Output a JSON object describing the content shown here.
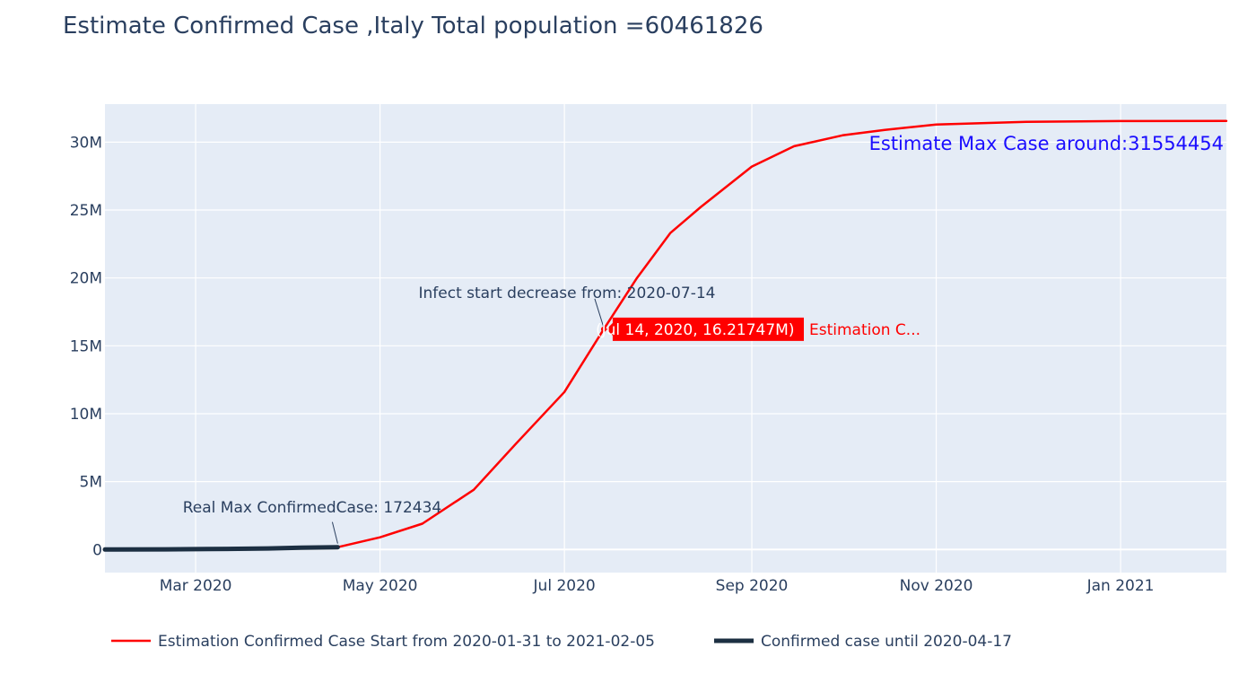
{
  "chart_data": {
    "type": "line",
    "title": "Estimate Confirmed Case ,Italy Total population =60461826",
    "xlabel": "",
    "ylabel": "",
    "xlim": [
      "2020-01-31",
      "2021-02-05"
    ],
    "ylim": [
      -1700000,
      32800000
    ],
    "x_ticks": [
      {
        "date": "2020-03-01",
        "label": "Mar 2020"
      },
      {
        "date": "2020-05-01",
        "label": "May 2020"
      },
      {
        "date": "2020-07-01",
        "label": "Jul 2020"
      },
      {
        "date": "2020-09-01",
        "label": "Sep 2020"
      },
      {
        "date": "2020-11-01",
        "label": "Nov 2020"
      },
      {
        "date": "2021-01-01",
        "label": "Jan 2021"
      }
    ],
    "y_ticks": [
      {
        "value": 0,
        "label": "0"
      },
      {
        "value": 5000000,
        "label": "5M"
      },
      {
        "value": 10000000,
        "label": "10M"
      },
      {
        "value": 15000000,
        "label": "15M"
      },
      {
        "value": 20000000,
        "label": "20M"
      },
      {
        "value": 25000000,
        "label": "25M"
      },
      {
        "value": 30000000,
        "label": "30M"
      }
    ],
    "grid": true,
    "legend_position": "bottom",
    "series": [
      {
        "name": "Estimation Confirmed Case Start from 2020-01-31 to 2021-02-05",
        "color": "#ff0000",
        "x": [
          "2020-01-31",
          "2020-03-01",
          "2020-04-01",
          "2020-04-17",
          "2020-05-01",
          "2020-05-15",
          "2020-06-01",
          "2020-06-15",
          "2020-07-01",
          "2020-07-14",
          "2020-07-25",
          "2020-08-05",
          "2020-08-15",
          "2020-09-01",
          "2020-09-15",
          "2020-10-01",
          "2020-10-15",
          "2020-11-01",
          "2020-12-01",
          "2021-01-01",
          "2021-02-05"
        ],
        "y": [
          0,
          50000,
          100000,
          172434,
          900000,
          1900000,
          4400000,
          7800000,
          11600000,
          16217470,
          20000000,
          23300000,
          25200000,
          28200000,
          29700000,
          30500000,
          30900000,
          31300000,
          31500000,
          31550000,
          31554454
        ]
      },
      {
        "name": "Confirmed case until 2020-04-17",
        "color": "#1c2f42",
        "x": [
          "2020-01-31",
          "2020-02-20",
          "2020-03-05",
          "2020-03-15",
          "2020-03-25",
          "2020-04-05",
          "2020-04-17"
        ],
        "y": [
          0,
          10000,
          30000,
          50000,
          80000,
          130000,
          172434
        ]
      }
    ],
    "annotations": [
      {
        "text": "Real Max ConfirmedCase: 172434",
        "x": "2020-04-17",
        "y": 172434
      },
      {
        "text": "Infect start decrease from: 2020-07-14",
        "x": "2020-07-14",
        "y": 16217470
      },
      {
        "text": "Estimate Max Case around:31554454",
        "x": "2021-02-05",
        "y": 31554454,
        "color": "#1a0dff"
      }
    ],
    "hover": {
      "box_text": "(Jul 14, 2020, 16.21747M)",
      "trace_label": "Estimation C...",
      "x": "2020-07-14",
      "y": 16217470,
      "color": "#ff0000"
    }
  }
}
